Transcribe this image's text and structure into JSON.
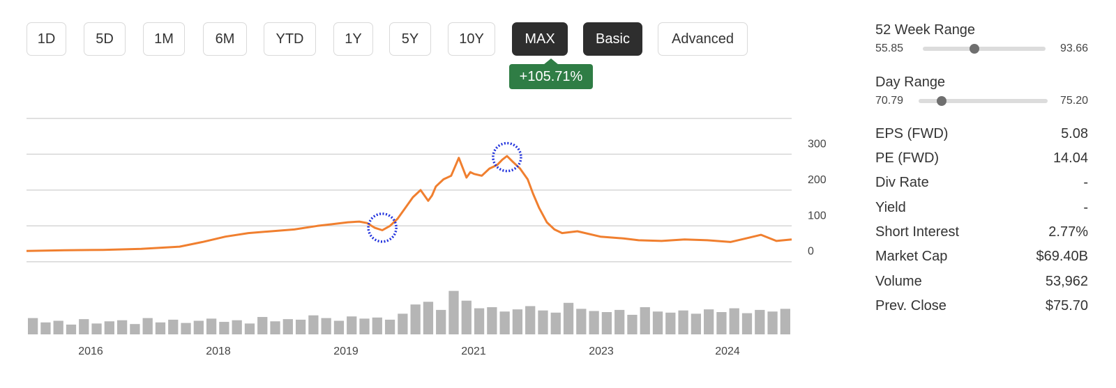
{
  "timeframes": [
    {
      "label": "1D",
      "active": false
    },
    {
      "label": "5D",
      "active": false
    },
    {
      "label": "1M",
      "active": false
    },
    {
      "label": "6M",
      "active": false
    },
    {
      "label": "YTD",
      "active": false
    },
    {
      "label": "1Y",
      "active": false
    },
    {
      "label": "5Y",
      "active": false
    },
    {
      "label": "10Y",
      "active": false
    },
    {
      "label": "MAX",
      "active": true
    }
  ],
  "view_modes": [
    {
      "label": "Basic",
      "active": true
    },
    {
      "label": "Advanced",
      "active": false
    }
  ],
  "change_badge": {
    "label": "+105.71%",
    "color": "#2f7d45"
  },
  "chart_data": {
    "type": "line",
    "y_ticks": [
      "300",
      "200",
      "100",
      "0"
    ],
    "x_ticks": [
      "2016",
      "2018",
      "2019",
      "2021",
      "2023",
      "2024"
    ],
    "ylim": [
      -20,
      400
    ],
    "series": [
      {
        "color": "#f07f2f",
        "x": [
          2015.0,
          2015.5,
          2016.0,
          2016.5,
          2017.0,
          2017.3,
          2017.6,
          2017.9,
          2018.2,
          2018.5,
          2018.8,
          2019.0,
          2019.2,
          2019.35,
          2019.45,
          2019.55,
          2019.65,
          2019.75,
          2019.85,
          2019.95,
          2020.05,
          2020.15,
          2020.25,
          2020.3,
          2020.35,
          2020.45,
          2020.55,
          2020.65,
          2020.75,
          2020.8,
          2020.85,
          2020.95,
          2021.05,
          2021.15,
          2021.22,
          2021.28,
          2021.35,
          2021.45,
          2021.55,
          2021.62,
          2021.7,
          2021.8,
          2021.9,
          2022.0,
          2022.2,
          2022.5,
          2022.8,
          2023.0,
          2023.3,
          2023.6,
          2023.9,
          2024.2,
          2024.4,
          2024.6,
          2024.8,
          2025.0
        ],
        "y": [
          30,
          32,
          33,
          36,
          42,
          55,
          70,
          80,
          85,
          90,
          100,
          105,
          110,
          112,
          108,
          95,
          88,
          100,
          120,
          150,
          180,
          200,
          170,
          185,
          210,
          230,
          240,
          290,
          235,
          250,
          245,
          240,
          260,
          270,
          285,
          295,
          280,
          260,
          230,
          190,
          150,
          110,
          90,
          80,
          85,
          70,
          65,
          60,
          58,
          62,
          60,
          55,
          65,
          75,
          58,
          62
        ]
      }
    ],
    "volume": [
      0.3,
      0.22,
      0.25,
      0.18,
      0.28,
      0.2,
      0.24,
      0.26,
      0.19,
      0.3,
      0.22,
      0.27,
      0.21,
      0.25,
      0.29,
      0.23,
      0.26,
      0.2,
      0.32,
      0.24,
      0.28,
      0.27,
      0.35,
      0.3,
      0.25,
      0.33,
      0.29,
      0.31,
      0.27,
      0.38,
      0.55,
      0.6,
      0.45,
      0.8,
      0.62,
      0.48,
      0.5,
      0.42,
      0.46,
      0.52,
      0.44,
      0.4,
      0.58,
      0.47,
      0.43,
      0.41,
      0.45,
      0.36,
      0.5,
      0.42,
      0.4,
      0.44,
      0.38,
      0.46,
      0.41,
      0.48,
      0.39,
      0.45,
      0.42,
      0.47
    ],
    "annotations": [
      {
        "x": 2019.65,
        "y": 95
      },
      {
        "x": 2021.28,
        "y": 292
      }
    ],
    "annotation_color": "#2233dd"
  },
  "stats": {
    "week52": {
      "title": "52 Week Range",
      "min": "55.85",
      "max": "93.66",
      "position": 0.42
    },
    "day": {
      "title": "Day Range",
      "min": "70.79",
      "max": "75.20",
      "position": 0.18
    },
    "rows": [
      {
        "label": "EPS (FWD)",
        "value": "5.08"
      },
      {
        "label": "PE (FWD)",
        "value": "14.04"
      },
      {
        "label": "Div Rate",
        "value": "-"
      },
      {
        "label": "Yield",
        "value": "-"
      },
      {
        "label": "Short Interest",
        "value": "2.77%"
      },
      {
        "label": "Market Cap",
        "value": "$69.40B"
      },
      {
        "label": "Volume",
        "value": "53,962"
      },
      {
        "label": "Prev. Close",
        "value": "$75.70"
      }
    ]
  }
}
